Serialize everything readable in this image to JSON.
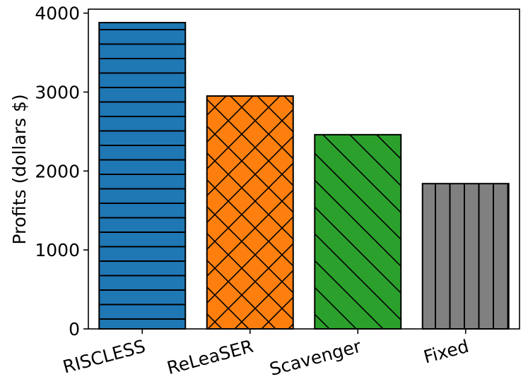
{
  "chart_data": {
    "type": "bar",
    "title": "",
    "xlabel": "",
    "ylabel": "Profits (dollars $)",
    "ylim": [
      0,
      4050
    ],
    "yticks": [
      0,
      1000,
      2000,
      3000,
      4000
    ],
    "categories": [
      "RISCLESS",
      "ReLeaSER",
      "Scavenger",
      "Fixed"
    ],
    "values": [
      3880,
      2950,
      2460,
      1840
    ],
    "colors": [
      "#1f77b4",
      "#ff7f0e",
      "#2ca02c",
      "#808080"
    ],
    "hatches": [
      "horizontal",
      "crosshatch",
      "diagonal",
      "vertical"
    ],
    "grid": false,
    "legend": "none"
  }
}
